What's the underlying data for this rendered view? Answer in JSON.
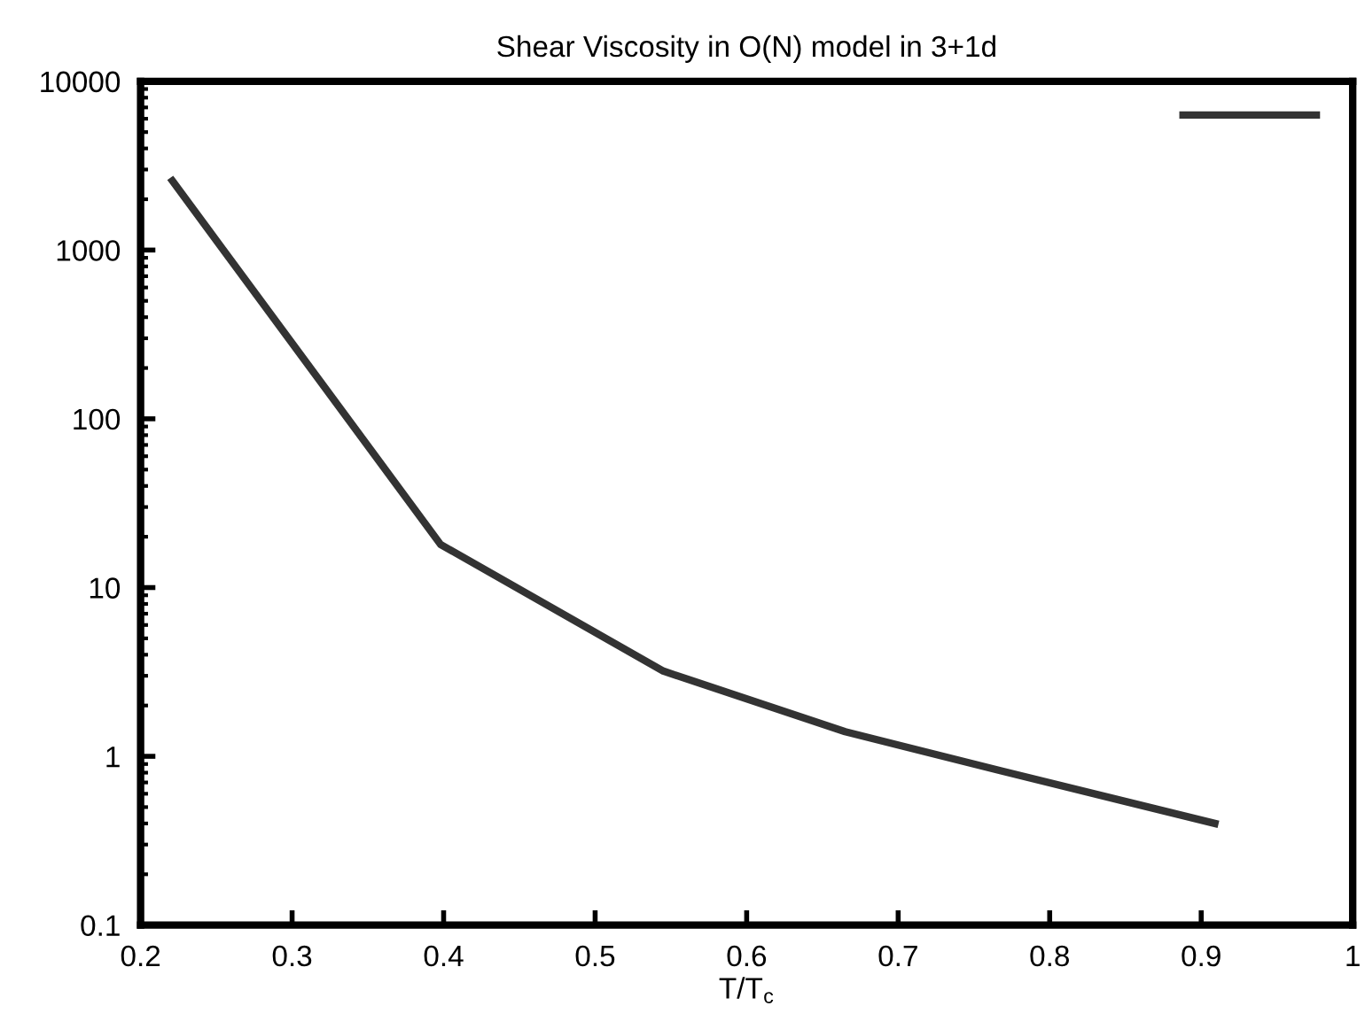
{
  "chart_data": {
    "type": "line",
    "title": "Shear Viscosity in O(N) model in 3+1d",
    "xlabel": "T/T$_{c}$",
    "log": "y",
    "x": [
      0.221,
      0.398,
      0.545,
      0.665,
      0.768,
      0.909
    ],
    "series": [
      {
        "color": "#333333",
        "values": [
          2570,
          18,
          3.2,
          1.4,
          0.82,
          0.4
        ]
      }
    ],
    "xlim": [
      0.2,
      1
    ],
    "xticks": [
      0.2,
      0.3,
      0.4,
      0.5,
      0.6,
      0.7,
      0.8,
      0.9,
      1
    ],
    "ylim": [
      0.1,
      10000
    ],
    "yticks": [
      0.1,
      1,
      10,
      100,
      1000,
      10000
    ],
    "grid": false,
    "marker": "none",
    "line_style": "solid"
  }
}
